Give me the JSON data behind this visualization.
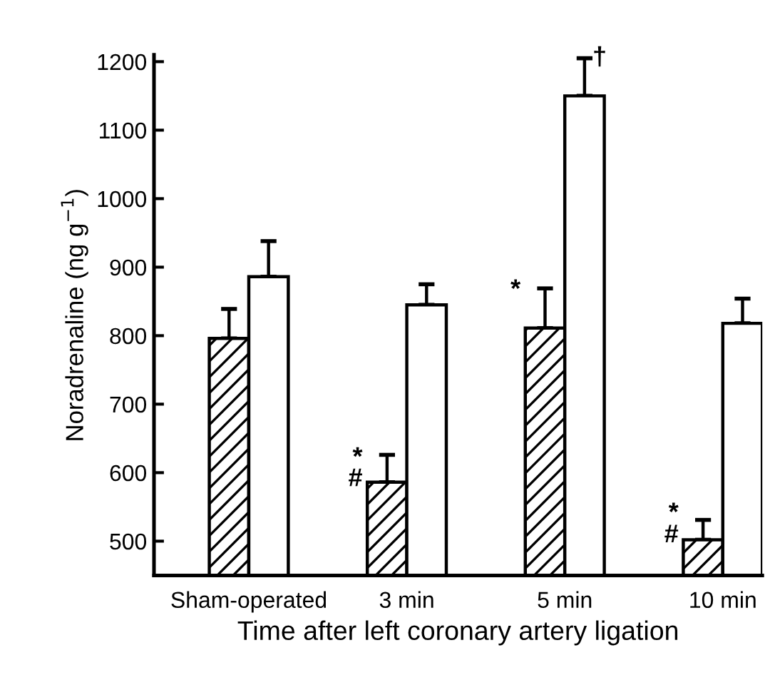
{
  "chart_data": {
    "type": "bar",
    "xlabel": "Time after left coronary artery ligation",
    "ylabel": "Noradrenaline (ng g$^{−1}$)",
    "categories": [
      "Sham-operated",
      "3 min",
      "5 min",
      "10 min"
    ],
    "series": [
      {
        "color": "#000000",
        "values": [
          796,
          586,
          811,
          502
        ],
        "errors": [
          [
            796,
            839
          ],
          [
            586,
            626
          ],
          [
            811,
            869
          ],
          [
            502,
            531
          ]
        ]
      },
      {
        "color": "#000000",
        "values": [
          886,
          845,
          1150,
          818
        ],
        "errors": [
          [
            886,
            938
          ],
          [
            845,
            875
          ],
          [
            1150,
            1205
          ],
          [
            818,
            854
          ]
        ]
      }
    ],
    "ylim": [
      450,
      1210
    ],
    "yticks": [
      500,
      600,
      700,
      800,
      900,
      1000,
      1100,
      1200
    ],
    "grid": false,
    "legend": false,
    "annotations": [
      {
        "text": "*",
        "x": "3 min",
        "y": 621
      },
      {
        "text": "#",
        "x": "3 min",
        "y": 590
      },
      {
        "text": "*",
        "x": "5 min",
        "y": 866
      },
      {
        "text": "†",
        "x": "5 min",
        "y": 1150
      },
      {
        "text": "*",
        "x": "10 min",
        "y": 540
      },
      {
        "text": "#",
        "x": "10 min",
        "y": 508
      }
    ]
  }
}
